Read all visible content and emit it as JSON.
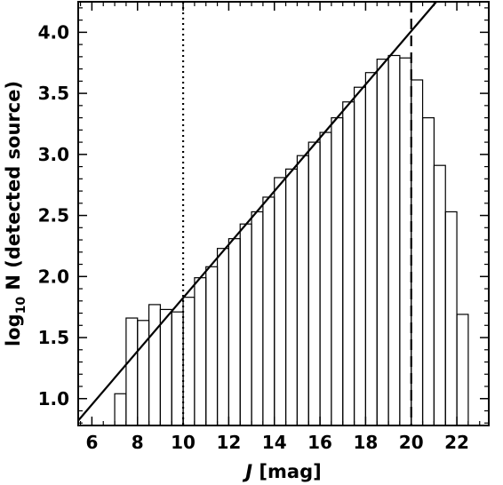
{
  "chart_data": {
    "type": "bar",
    "bar_style": "step-histogram",
    "xlabel_italic": "J",
    "xlabel_rest": " [mag]",
    "ylabel_prefix": "log",
    "ylabel_subscript": "10",
    "ylabel_rest": " N (detected source)",
    "xlim": [
      5.4,
      23.4
    ],
    "ylim": [
      0.78,
      4.25
    ],
    "xticks": [
      6,
      8,
      10,
      12,
      14,
      16,
      18,
      20,
      22
    ],
    "yticks": [
      1.0,
      1.5,
      2.0,
      2.5,
      3.0,
      3.5,
      4.0
    ],
    "ytick_labels": [
      "1.0",
      "1.5",
      "2.0",
      "2.5",
      "3.0",
      "3.5",
      "4.0"
    ],
    "bin_width": 0.5,
    "bin_left_edges": [
      7.0,
      7.5,
      8.0,
      8.5,
      9.0,
      9.5,
      10.0,
      10.5,
      11.0,
      11.5,
      12.0,
      12.5,
      13.0,
      13.5,
      14.0,
      14.5,
      15.0,
      15.5,
      16.0,
      16.5,
      17.0,
      17.5,
      18.0,
      18.5,
      19.0,
      19.5,
      20.0,
      20.5,
      21.0,
      21.5,
      22.0
    ],
    "values": [
      1.04,
      1.66,
      1.64,
      1.77,
      1.73,
      1.71,
      1.83,
      1.99,
      2.08,
      2.23,
      2.31,
      2.43,
      2.53,
      2.65,
      2.81,
      2.88,
      2.99,
      3.1,
      3.18,
      3.3,
      3.43,
      3.55,
      3.67,
      3.78,
      3.81,
      3.79,
      3.61,
      3.3,
      2.91,
      2.53,
      1.69
    ],
    "fit_line": {
      "x": [
        5.4,
        21.1
      ],
      "y": [
        0.82,
        4.25
      ]
    },
    "vlines": [
      {
        "x": 10.0,
        "style": "dotted"
      },
      {
        "x": 20.0,
        "style": "dashed"
      }
    ],
    "grid": false,
    "legend": "none"
  }
}
